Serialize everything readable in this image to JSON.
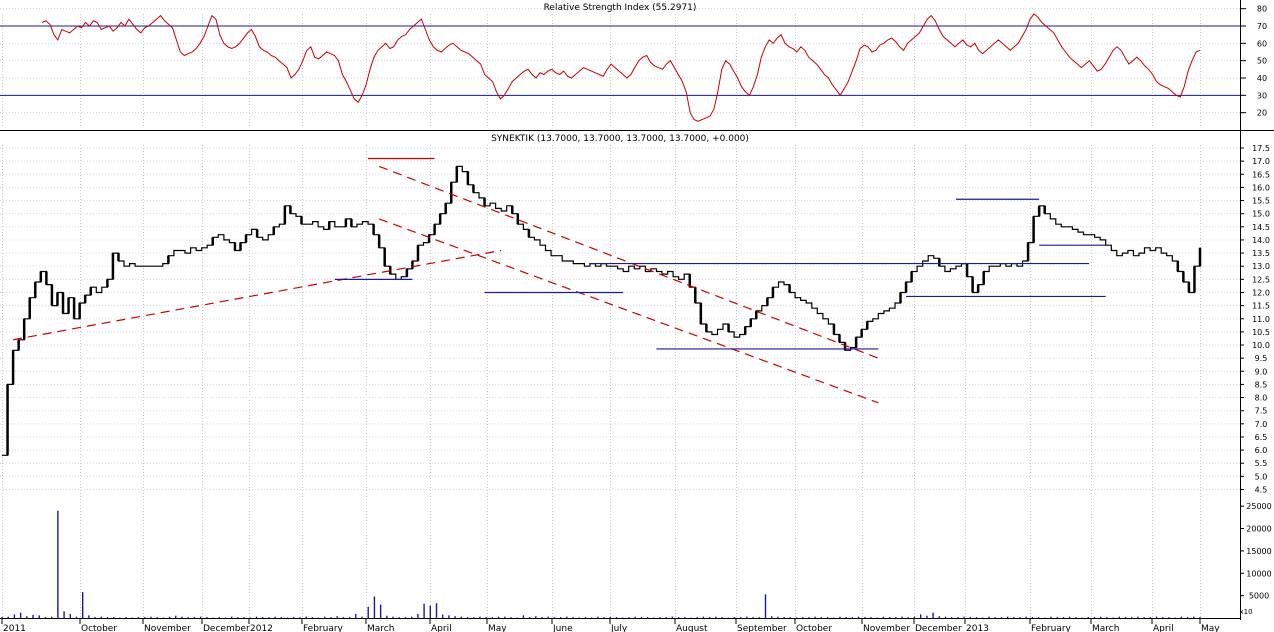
{
  "chart_data": [
    {
      "type": "line",
      "title": "Relative Strength Index (55.2971)",
      "ylim": [
        10,
        85
      ],
      "yticks": [
        20,
        30,
        40,
        50,
        60,
        70,
        80
      ],
      "reference_lines": [
        30,
        70
      ],
      "grid": true,
      "colors": {
        "line": "#cc0000",
        "reference": "#1a1aa0"
      },
      "series": [
        {
          "values": [
            72,
            73,
            71,
            65,
            62,
            68,
            67,
            66,
            68,
            70,
            69,
            72,
            70,
            73,
            72,
            68,
            69,
            70,
            67,
            69,
            72,
            70,
            74,
            71,
            68,
            66,
            69,
            70,
            72,
            74,
            76,
            73,
            71,
            69,
            62,
            55,
            53,
            54,
            55,
            57,
            60,
            64,
            70,
            76,
            74,
            65,
            60,
            58,
            57,
            58,
            60,
            63,
            66,
            68,
            64,
            58,
            56,
            55,
            53,
            52,
            50,
            48,
            46,
            40,
            42,
            45,
            50,
            56,
            58,
            52,
            51,
            53,
            55,
            54,
            53,
            50,
            42,
            38,
            33,
            28,
            26,
            30,
            36,
            45,
            52,
            56,
            58,
            60,
            57,
            58,
            62,
            64,
            65,
            68,
            70,
            72,
            74,
            68,
            62,
            58,
            56,
            55,
            57,
            59,
            60,
            58,
            56,
            55,
            54,
            52,
            50,
            48,
            42,
            40,
            38,
            32,
            28,
            30,
            34,
            38,
            40,
            42,
            44,
            45,
            42,
            40,
            43,
            42,
            44,
            45,
            43,
            42,
            44,
            41,
            40,
            42,
            44,
            46,
            45,
            44,
            43,
            42,
            41,
            45,
            48,
            46,
            44,
            42,
            40,
            42,
            46,
            50,
            52,
            53,
            49,
            47,
            46,
            45,
            48,
            50,
            46,
            42,
            38,
            32,
            20,
            16,
            15,
            16,
            17,
            18,
            22,
            32,
            45,
            50,
            48,
            44,
            40,
            35,
            32,
            30,
            35,
            42,
            52,
            58,
            62,
            60,
            63,
            65,
            60,
            58,
            57,
            55,
            58,
            56,
            52,
            50,
            48,
            45,
            42,
            40,
            36,
            33,
            30,
            34,
            38,
            44,
            50,
            57,
            59,
            58,
            55,
            56,
            59,
            60,
            62,
            63,
            61,
            58,
            56,
            60,
            62,
            64,
            66,
            70,
            74,
            76,
            73,
            68,
            64,
            62,
            60,
            58,
            60,
            62,
            59,
            58,
            60,
            56,
            54,
            56,
            58,
            60,
            62,
            60,
            58,
            56,
            58,
            60,
            64,
            68,
            74,
            77,
            75,
            72,
            70,
            68,
            66,
            62,
            58,
            55,
            52,
            50,
            48,
            46,
            48,
            50,
            47,
            44,
            45,
            48,
            52,
            56,
            58,
            56,
            52,
            48,
            50,
            52,
            50,
            47,
            45,
            42,
            38,
            36,
            35,
            34,
            32,
            30,
            29,
            35,
            44,
            50,
            55,
            56
          ]
        }
      ]
    },
    {
      "type": "line",
      "title": "SYNEKTIK (13.7000, 13.7000, 13.7000, 13.7000, +0.000)",
      "ylim": [
        4.5,
        17.5
      ],
      "yticks": [
        "17.5",
        "17.0",
        "16.5",
        "16.0",
        "15.5",
        "15.0",
        "14.5",
        "14.0",
        "13.5",
        "13.0",
        "12.5",
        "12.0",
        "11.5",
        "11.0",
        "10.5",
        "10.0",
        "9.5",
        "9.0",
        "8.5",
        "8.0",
        "7.5",
        "7.0",
        "6.5",
        "6.0",
        "5.5",
        "5.0",
        "4.5"
      ],
      "grid": true,
      "colors": {
        "price": "#000000",
        "trend_red": "#cc0000",
        "level_blue": "#1a1aa0"
      },
      "series": [
        {
          "values": [
            5.8,
            8.5,
            9.8,
            10.2,
            11.0,
            11.8,
            12.4,
            12.8,
            12.3,
            11.5,
            12.0,
            11.2,
            11.8,
            11.0,
            11.6,
            11.9,
            12.2,
            12.0,
            12.2,
            12.5,
            13.5,
            13.2,
            13.0,
            13.1,
            13.0,
            13.0,
            13.0,
            13.0,
            13.0,
            13.1,
            13.4,
            13.6,
            13.6,
            13.5,
            13.7,
            13.6,
            13.7,
            13.8,
            14.1,
            14.2,
            14.0,
            13.9,
            13.6,
            13.9,
            14.2,
            14.4,
            14.1,
            14.0,
            14.2,
            14.5,
            14.6,
            15.3,
            15.0,
            14.9,
            14.6,
            14.6,
            14.7,
            14.5,
            14.4,
            14.7,
            14.5,
            14.5,
            14.8,
            14.5,
            14.6,
            14.7,
            14.6,
            14.2,
            13.7,
            13.0,
            12.7,
            12.5,
            12.6,
            12.9,
            13.2,
            13.8,
            13.9,
            14.2,
            14.6,
            15.0,
            15.4,
            16.2,
            16.8,
            16.6,
            16.1,
            15.8,
            15.6,
            15.3,
            15.4,
            15.2,
            15.1,
            15.3,
            15.0,
            14.6,
            14.4,
            14.1,
            14.0,
            13.8,
            13.6,
            13.4,
            13.4,
            13.2,
            13.2,
            13.1,
            13.1,
            13.0,
            13.1,
            13.0,
            13.1,
            13.0,
            13.0,
            12.9,
            12.8,
            13.0,
            12.9,
            13.0,
            12.8,
            12.9,
            12.8,
            12.7,
            12.8,
            12.6,
            12.5,
            12.7,
            12.2,
            11.6,
            10.8,
            10.5,
            10.4,
            10.6,
            10.8,
            10.5,
            10.3,
            10.4,
            10.7,
            11.0,
            11.3,
            11.5,
            11.8,
            12.2,
            12.4,
            12.3,
            12.0,
            11.8,
            11.7,
            11.6,
            11.4,
            11.2,
            11.0,
            10.8,
            10.4,
            10.1,
            9.8,
            9.9,
            10.3,
            10.6,
            10.9,
            11.0,
            11.2,
            11.3,
            11.4,
            11.6,
            12.0,
            12.4,
            12.8,
            13.0,
            13.2,
            13.4,
            13.3,
            13.0,
            12.8,
            12.9,
            13.0,
            13.1,
            12.6,
            12.0,
            12.3,
            12.8,
            13.0,
            13.0,
            13.1,
            13.0,
            13.1,
            13.0,
            13.2,
            13.9,
            14.9,
            15.3,
            15.0,
            14.8,
            14.6,
            14.5,
            14.5,
            14.4,
            14.3,
            14.2,
            14.2,
            14.1,
            14.0,
            13.8,
            13.6,
            13.4,
            13.5,
            13.6,
            13.4,
            13.5,
            13.7,
            13.6,
            13.7,
            13.5,
            13.4,
            13.2,
            12.8,
            12.4,
            12.0,
            13.0,
            13.7
          ]
        }
      ],
      "trendlines_red": [
        {
          "from": [
            2,
            10.2
          ],
          "to": [
            90,
            13.6
          ]
        },
        {
          "from": [
            68,
            16.8
          ],
          "to": [
            158,
            9.5
          ]
        },
        {
          "from": [
            68,
            14.8
          ],
          "to": [
            158,
            7.8
          ]
        }
      ],
      "levels_red": [
        {
          "y": 17.1,
          "x": [
            66,
            78
          ]
        }
      ],
      "levels_blue": [
        {
          "y": 12.5,
          "x": [
            60,
            74
          ]
        },
        {
          "y": 12.0,
          "x": [
            87,
            112
          ]
        },
        {
          "y": 13.1,
          "x": [
            106,
            196
          ]
        },
        {
          "y": 9.85,
          "x": [
            118,
            158
          ]
        },
        {
          "y": 11.85,
          "x": [
            163,
            199
          ]
        },
        {
          "y": 15.55,
          "x": [
            172,
            187
          ]
        },
        {
          "y": 13.8,
          "x": [
            187,
            199
          ]
        }
      ]
    },
    {
      "type": "bar",
      "ylim": [
        0,
        27500
      ],
      "yticks": [
        "25000",
        "20000",
        "15000",
        "10000",
        "5000"
      ],
      "units_label": "x10",
      "colors": {
        "bars": "#1a1aa0"
      },
      "series": [
        {
          "values": [
            200,
            300,
            800,
            1200,
            400,
            700,
            600,
            200,
            300,
            24000,
            1500,
            900,
            300,
            5800,
            600,
            200,
            300,
            200,
            200,
            100,
            200,
            100,
            200,
            200,
            300,
            200,
            100,
            300,
            500,
            300,
            200,
            200,
            300,
            200,
            100,
            200,
            100,
            300,
            200,
            200,
            100,
            300,
            200,
            200,
            300,
            200,
            100,
            200,
            200,
            300,
            200,
            100,
            300,
            200,
            400,
            200,
            200,
            900,
            300,
            2500,
            4800,
            3000,
            500,
            300,
            200,
            200,
            300,
            900,
            3200,
            2800,
            3300,
            800,
            600,
            400,
            300,
            200,
            200,
            300,
            200,
            200,
            300,
            300,
            200,
            100,
            600,
            200,
            400,
            200,
            300,
            200,
            200,
            300,
            200,
            100,
            200,
            100,
            300,
            200,
            200,
            200,
            100,
            200,
            300,
            200,
            200,
            100,
            200,
            200,
            300,
            200,
            200,
            100,
            200,
            300,
            200,
            300,
            200,
            100,
            200,
            200,
            300,
            200,
            200,
            5300,
            400,
            300,
            200,
            200,
            100,
            200,
            200,
            300,
            200,
            200,
            100,
            300,
            200,
            200,
            300,
            200,
            200,
            100,
            300,
            200,
            200,
            300,
            200,
            300,
            800,
            500,
            1200,
            400,
            300,
            200,
            200,
            300,
            200,
            200,
            100,
            300,
            200,
            200,
            300,
            200,
            200,
            300,
            200,
            200,
            100,
            300,
            200,
            200,
            300,
            200,
            100,
            200,
            200,
            300,
            200,
            100,
            300,
            200,
            200,
            300,
            200,
            200,
            300,
            200,
            200,
            100,
            300,
            200,
            300,
            200
          ]
        }
      ]
    }
  ],
  "x_axis": {
    "labels": [
      "2011",
      "October",
      "November",
      "December",
      "2012",
      "February",
      "March",
      "April",
      "May",
      "June",
      "July",
      "August",
      "September",
      "October",
      "November",
      "December",
      "2013",
      "February",
      "March",
      "April",
      "May"
    ]
  }
}
